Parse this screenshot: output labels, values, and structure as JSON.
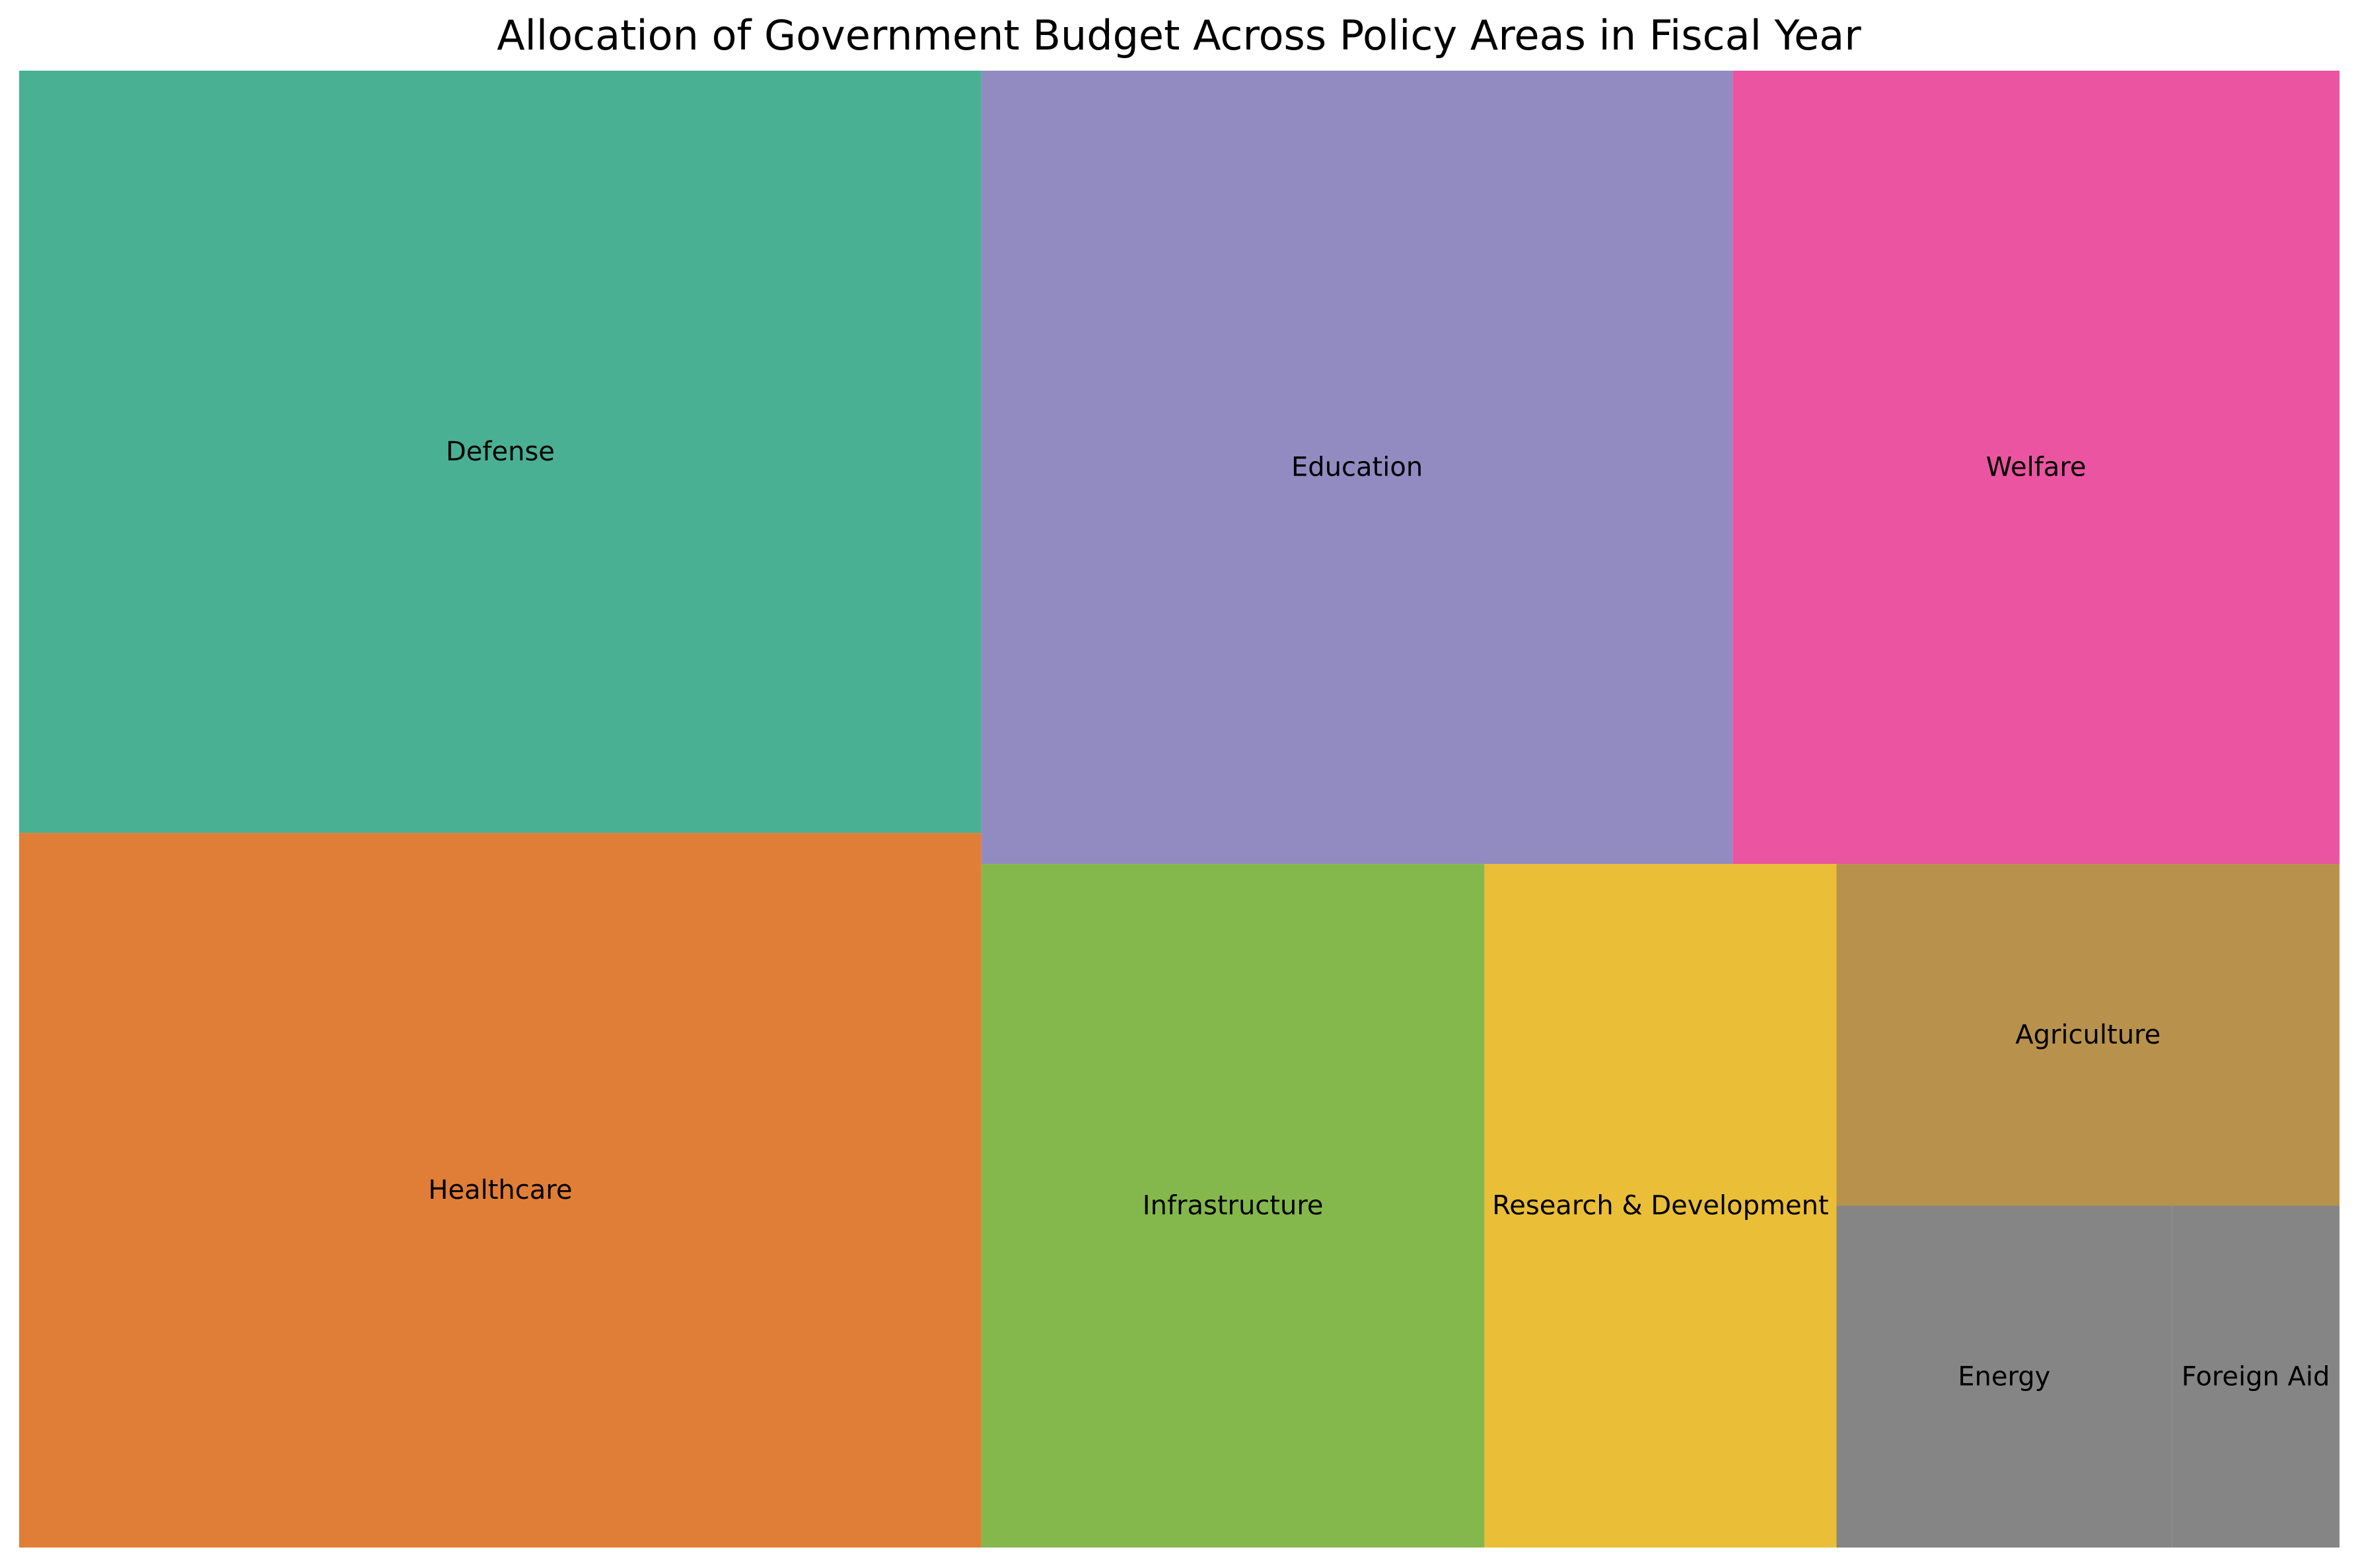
{
  "chart_data": {
    "type": "treemap",
    "title": "Allocation of Government Budget Across Policy Areas in Fiscal Year",
    "items": [
      {
        "label": "Defense",
        "value": 32,
        "color": "#4AB093"
      },
      {
        "label": "Healthcare",
        "value": 30,
        "color": "#E07E37"
      },
      {
        "label": "Education",
        "value": 26,
        "color": "#918BC1"
      },
      {
        "label": "Welfare",
        "value": 21,
        "color": "#EA54A0"
      },
      {
        "label": "Infrastructure",
        "value": 15,
        "color": "#85B84C"
      },
      {
        "label": "Research & Development",
        "value": 10.5,
        "color": "#EABE37"
      },
      {
        "label": "Agriculture",
        "value": 7.5,
        "color": "#B8924C"
      },
      {
        "label": "Energy",
        "value": 5,
        "color": "#858585"
      },
      {
        "label": "Foreign Aid",
        "value": 2.5,
        "color": "#858585"
      }
    ]
  }
}
